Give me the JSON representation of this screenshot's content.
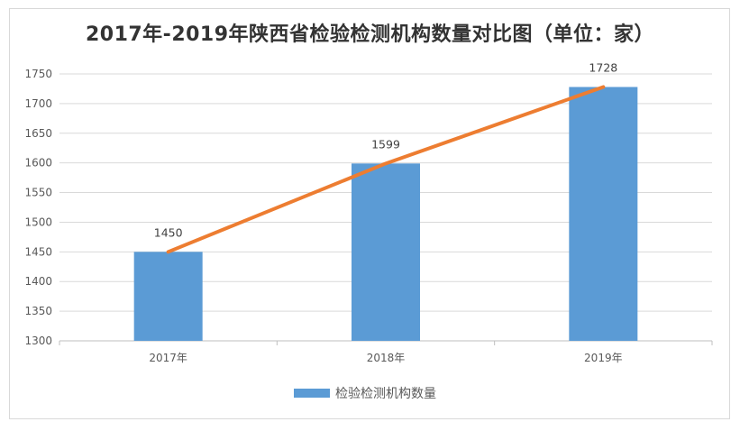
{
  "chart_data": {
    "type": "bar",
    "title": "2017年-2019年陕西省检验检测机构数量对比图（单位：家）",
    "categories": [
      "2017年",
      "2018年",
      "2019年"
    ],
    "series": [
      {
        "name": "检验检测机构数量",
        "values": [
          1450,
          1599,
          1728
        ],
        "color": "#5b9bd5"
      }
    ],
    "trend_line": {
      "values": [
        1450,
        1599,
        1728
      ],
      "color": "#ed7d31"
    },
    "data_labels": [
      "1450",
      "1599",
      "1728"
    ],
    "ylim": [
      1300,
      1750
    ],
    "yticks": [
      1300,
      1350,
      1400,
      1450,
      1500,
      1550,
      1600,
      1650,
      1700,
      1750
    ],
    "grid": true,
    "legend_position": "bottom"
  }
}
